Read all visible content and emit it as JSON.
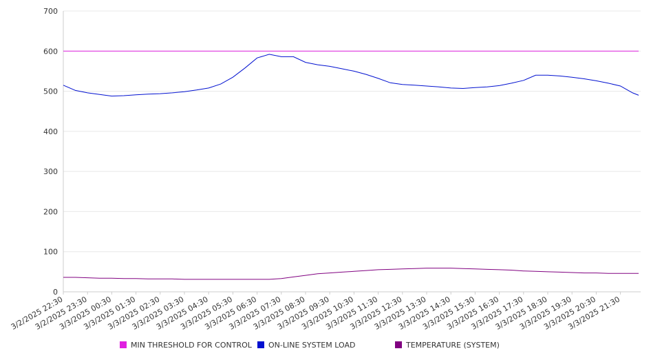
{
  "colors": {
    "threshold": "#e020e0",
    "load": "#0010d0",
    "temperature": "#800080",
    "grid": "#e8e8e8",
    "axis": "#cccccc",
    "text": "#333333"
  },
  "chart_data": {
    "type": "line",
    "title": "",
    "xlabel": "",
    "ylabel": "",
    "ylim": [
      0,
      700
    ],
    "yticks": [
      0,
      100,
      200,
      300,
      400,
      500,
      600,
      700
    ],
    "grid": true,
    "legend_position": "bottom",
    "x_tick_labels": [
      "3/2/2025 22:30",
      "3/2/2025 23:30",
      "3/3/2025 00:30",
      "3/3/2025 01:30",
      "3/3/2025 02:30",
      "3/3/2025 03:30",
      "3/3/2025 04:30",
      "3/3/2025 05:30",
      "3/3/2025 06:30",
      "3/3/2025 07:30",
      "3/3/2025 08:30",
      "3/3/2025 09:30",
      "3/3/2025 10:30",
      "3/3/2025 11:30",
      "3/3/2025 12:30",
      "3/3/2025 13:30",
      "3/3/2025 14:30",
      "3/3/2025 15:30",
      "3/3/2025 16:30",
      "3/3/2025 17:30",
      "3/3/2025 18:30",
      "3/3/2025 19:30",
      "3/3/2025 20:30",
      "3/3/2025 21:30"
    ],
    "x": [
      "3/2/2025 22:30",
      "3/2/2025 23:00",
      "3/2/2025 23:30",
      "3/3/2025 00:00",
      "3/3/2025 00:30",
      "3/3/2025 01:00",
      "3/3/2025 01:30",
      "3/3/2025 02:00",
      "3/3/2025 02:30",
      "3/3/2025 03:00",
      "3/3/2025 03:30",
      "3/3/2025 04:00",
      "3/3/2025 04:30",
      "3/3/2025 05:00",
      "3/3/2025 05:30",
      "3/3/2025 06:00",
      "3/3/2025 06:30",
      "3/3/2025 07:00",
      "3/3/2025 07:30",
      "3/3/2025 08:00",
      "3/3/2025 08:30",
      "3/3/2025 09:00",
      "3/3/2025 09:30",
      "3/3/2025 10:00",
      "3/3/2025 10:30",
      "3/3/2025 11:00",
      "3/3/2025 11:30",
      "3/3/2025 12:00",
      "3/3/2025 12:30",
      "3/3/2025 13:00",
      "3/3/2025 13:30",
      "3/3/2025 14:00",
      "3/3/2025 14:30",
      "3/3/2025 15:00",
      "3/3/2025 15:30",
      "3/3/2025 16:00",
      "3/3/2025 16:30",
      "3/3/2025 17:00",
      "3/3/2025 17:30",
      "3/3/2025 18:00",
      "3/3/2025 18:30",
      "3/3/2025 19:00",
      "3/3/2025 19:30",
      "3/3/2025 20:00",
      "3/3/2025 20:30",
      "3/3/2025 21:00",
      "3/3/2025 21:30",
      "3/3/2025 22:00",
      "3/3/2025 22:15"
    ],
    "series": [
      {
        "name": "MIN THRESHOLD FOR CONTROL",
        "color": "#e020e0",
        "values": [
          600,
          600,
          600,
          600,
          600,
          600,
          600,
          600,
          600,
          600,
          600,
          600,
          600,
          600,
          600,
          600,
          600,
          600,
          600,
          600,
          600,
          600,
          600,
          600,
          600,
          600,
          600,
          600,
          600,
          600,
          600,
          600,
          600,
          600,
          600,
          600,
          600,
          600,
          600,
          600,
          600,
          600,
          600,
          600,
          600,
          600,
          600,
          600,
          600
        ]
      },
      {
        "name": "ON-LINE SYSTEM LOAD",
        "color": "#0010d0",
        "values": [
          515,
          502,
          496,
          492,
          488,
          489,
          491,
          493,
          494,
          496,
          499,
          503,
          508,
          518,
          535,
          558,
          583,
          592,
          586,
          586,
          572,
          566,
          562,
          556,
          550,
          542,
          532,
          521,
          517,
          515,
          513,
          511,
          508,
          507,
          509,
          511,
          514,
          520,
          527,
          540,
          540,
          538,
          535,
          531,
          526,
          520,
          513,
          496,
          490
        ]
      },
      {
        "name": "TEMPERATURE (SYSTEM)",
        "color": "#800080",
        "values": [
          36,
          36,
          35,
          34,
          34,
          33,
          33,
          32,
          32,
          32,
          31,
          31,
          31,
          31,
          31,
          31,
          31,
          31,
          33,
          37,
          41,
          45,
          47,
          49,
          51,
          53,
          55,
          56,
          57,
          58,
          59,
          59,
          59,
          58,
          57,
          56,
          55,
          54,
          52,
          51,
          50,
          49,
          48,
          47,
          47,
          46,
          46,
          46,
          46
        ]
      }
    ]
  }
}
